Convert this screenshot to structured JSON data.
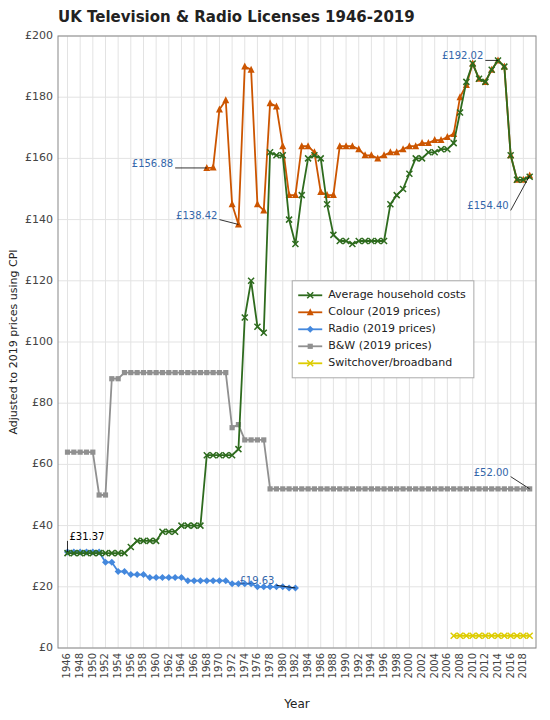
{
  "chart_data": {
    "type": "line",
    "title": "UK Television & Radio Licenses 1946-2019",
    "x_label": "Year",
    "y_label": "Adjusted to 2019 prices using CPI",
    "xlim": [
      1944.5,
      2020
    ],
    "xticks": [
      1946,
      1948,
      1950,
      1952,
      1954,
      1956,
      1958,
      1960,
      1962,
      1964,
      1966,
      1968,
      1970,
      1972,
      1974,
      1976,
      1978,
      1980,
      1982,
      1984,
      1986,
      1988,
      1990,
      1992,
      1994,
      1996,
      1998,
      2000,
      2002,
      2004,
      2006,
      2008,
      2010,
      2012,
      2014,
      2016,
      2018
    ],
    "ylim": [
      0,
      200
    ],
    "yticks": [
      {
        "value": 0,
        "label": "£0"
      },
      {
        "value": 20,
        "label": "£20"
      },
      {
        "value": 40,
        "label": "£40"
      },
      {
        "value": 60,
        "label": "£60"
      },
      {
        "value": 80,
        "label": "£80"
      },
      {
        "value": 100,
        "label": "£100"
      },
      {
        "value": 120,
        "label": "£120"
      },
      {
        "value": 140,
        "label": "£140"
      },
      {
        "value": 160,
        "label": "£160"
      },
      {
        "value": 180,
        "label": "£180"
      },
      {
        "value": 200,
        "label": "£200"
      }
    ],
    "grid": true,
    "legend": "right",
    "series": [
      {
        "name": "Average household costs",
        "color": "#2E6B1E",
        "marker": "x",
        "x": [
          1946,
          1947,
          1948,
          1949,
          1950,
          1951,
          1952,
          1953,
          1954,
          1955,
          1956,
          1957,
          1958,
          1959,
          1960,
          1961,
          1962,
          1963,
          1964,
          1965,
          1966,
          1967,
          1968,
          1969,
          1970,
          1971,
          1972,
          1973,
          1974,
          1975,
          1976,
          1977,
          1978,
          1979,
          1980,
          1981,
          1982,
          1983,
          1984,
          1985,
          1986,
          1987,
          1988,
          1989,
          1990,
          1991,
          1992,
          1993,
          1994,
          1995,
          1996,
          1997,
          1998,
          1999,
          2000,
          2001,
          2002,
          2003,
          2004,
          2005,
          2006,
          2007,
          2008,
          2009,
          2010,
          2011,
          2012,
          2013,
          2014,
          2015,
          2016,
          2017,
          2018,
          2019
        ],
        "values": [
          31,
          31,
          31,
          31,
          31,
          31,
          31,
          31,
          31,
          31,
          33,
          35,
          35,
          35,
          35,
          38,
          38,
          38,
          40,
          40,
          40,
          40,
          63,
          63,
          63,
          63,
          63,
          65,
          108,
          120,
          105,
          103,
          162,
          161,
          161,
          140,
          132,
          148,
          160,
          161,
          160,
          145,
          135,
          133,
          133,
          132,
          133,
          133,
          133,
          133,
          133,
          145,
          148,
          150,
          155,
          160,
          160,
          162,
          162,
          163,
          163,
          165,
          175,
          185,
          191,
          186,
          185,
          189,
          192,
          190,
          161,
          153,
          153,
          154
        ]
      },
      {
        "name": "Colour (2019 prices)",
        "color": "#CC5500",
        "marker": "triangle",
        "x": [
          1968,
          1969,
          1970,
          1971,
          1972,
          1973,
          1974,
          1975,
          1976,
          1977,
          1978,
          1979,
          1980,
          1981,
          1982,
          1983,
          1984,
          1985,
          1986,
          1987,
          1988,
          1989,
          1990,
          1991,
          1992,
          1993,
          1994,
          1995,
          1996,
          1997,
          1998,
          1999,
          2000,
          2001,
          2002,
          2003,
          2004,
          2005,
          2006,
          2007,
          2008,
          2009,
          2010,
          2011,
          2012,
          2013,
          2014,
          2015,
          2016,
          2017,
          2018,
          2019
        ],
        "values": [
          156.88,
          157,
          176,
          179,
          145,
          138.42,
          190,
          189,
          145,
          143,
          178,
          177,
          164,
          148,
          148,
          164,
          164,
          162,
          149,
          148,
          148,
          164,
          164,
          164,
          163,
          161,
          161,
          160,
          161,
          162,
          162,
          163,
          164,
          164,
          165,
          165,
          166,
          166,
          167,
          168,
          180,
          184,
          191,
          186,
          185,
          189,
          192.02,
          190,
          161,
          153,
          153,
          154.4
        ]
      },
      {
        "name": "Radio (2019 prices)",
        "color": "#4488DD",
        "marker": "diamond",
        "x": [
          1946,
          1947,
          1948,
          1949,
          1950,
          1951,
          1952,
          1953,
          1954,
          1955,
          1956,
          1957,
          1958,
          1959,
          1960,
          1961,
          1962,
          1963,
          1964,
          1965,
          1966,
          1967,
          1968,
          1969,
          1970,
          1971,
          1972,
          1973,
          1974,
          1975,
          1976,
          1977,
          1978,
          1979,
          1980,
          1981,
          1982
        ],
        "values": [
          31.37,
          31.37,
          31.37,
          31.37,
          31.37,
          31.37,
          28,
          28,
          25,
          25,
          24,
          24,
          24,
          23,
          23,
          23,
          23,
          23,
          23,
          22,
          22,
          22,
          22,
          22,
          22,
          22,
          21,
          21,
          21,
          21,
          20,
          20,
          20,
          20,
          20,
          19.63,
          19.63
        ]
      },
      {
        "name": "B&W (2019 prices)",
        "color": "#909090",
        "marker": "square",
        "x": [
          1946,
          1947,
          1948,
          1949,
          1950,
          1951,
          1952,
          1953,
          1954,
          1955,
          1956,
          1957,
          1958,
          1959,
          1960,
          1961,
          1962,
          1963,
          1964,
          1965,
          1966,
          1967,
          1968,
          1969,
          1970,
          1971,
          1972,
          1973,
          1974,
          1975,
          1976,
          1977,
          1978,
          1979,
          1980,
          1981,
          1982,
          1983,
          1984,
          1985,
          1986,
          1987,
          1988,
          1989,
          1990,
          1991,
          1992,
          1993,
          1994,
          1995,
          1996,
          1997,
          1998,
          1999,
          2000,
          2001,
          2002,
          2003,
          2004,
          2005,
          2006,
          2007,
          2008,
          2009,
          2010,
          2011,
          2012,
          2013,
          2014,
          2015,
          2016,
          2017,
          2018,
          2019
        ],
        "values": [
          64,
          64,
          64,
          64,
          64,
          50,
          50,
          88,
          88,
          90,
          90,
          90,
          90,
          90,
          90,
          90,
          90,
          90,
          90,
          90,
          90,
          90,
          90,
          90,
          90,
          90,
          72,
          73,
          68,
          68,
          68,
          68,
          52,
          52,
          52,
          52,
          52,
          52,
          52,
          52,
          52,
          52,
          52,
          52,
          52,
          52,
          52,
          52,
          52,
          52,
          52,
          52,
          52,
          52,
          52,
          52,
          52,
          52,
          52,
          52,
          52,
          52,
          52,
          52,
          52,
          52,
          52,
          52,
          52,
          52,
          52,
          52,
          52,
          52
        ]
      },
      {
        "name": "Switchover/broadband",
        "color": "#DDCC00",
        "marker": "x",
        "x": [
          2007,
          2008,
          2009,
          2010,
          2011,
          2012,
          2013,
          2014,
          2015,
          2016,
          2017,
          2018,
          2019
        ],
        "values": [
          4,
          4,
          4,
          4,
          4,
          4,
          4,
          4,
          4,
          4,
          4,
          4,
          4
        ]
      }
    ],
    "annotations": [
      {
        "text": "£156.88",
        "x": 1968,
        "y": 156.88,
        "text_x": 1963,
        "text_y": 156.88,
        "color": "#3366AA"
      },
      {
        "text": "£138.42",
        "x": 1973,
        "y": 138.42,
        "text_x": 1970,
        "text_y": 140,
        "color": "#3366AA"
      },
      {
        "text": "£192.02",
        "x": 2014,
        "y": 192.02,
        "text_x": 2012,
        "text_y": 192.02,
        "color": "#3366AA"
      },
      {
        "text": "£154.40",
        "x": 2019,
        "y": 154.4,
        "text_x": 2016,
        "text_y": 143,
        "color": "#3366AA"
      },
      {
        "text": "£52.00",
        "x": 2019,
        "y": 52,
        "text_x": 2016,
        "text_y": 56,
        "color": "#3366AA"
      },
      {
        "text": "£31.37",
        "x": 1946,
        "y": 31.37,
        "text_x": 1946,
        "text_y": 35,
        "color": "#000000"
      },
      {
        "text": "£19.63",
        "x": 1982,
        "y": 19.63,
        "text_x": 1979,
        "text_y": 20.5,
        "color": "#3366AA"
      }
    ]
  }
}
